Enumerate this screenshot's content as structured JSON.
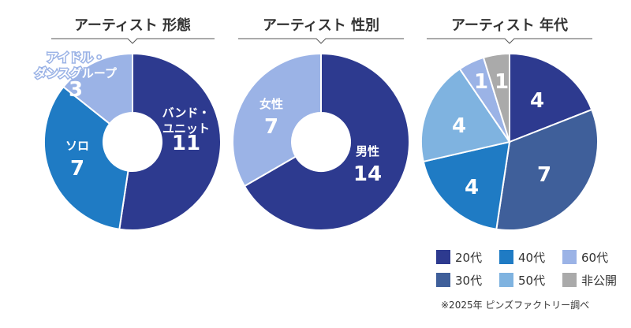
{
  "chart_data": [
    {
      "type": "pie",
      "title": "アーティスト 形態",
      "slices": [
        {
          "label": [
            "バンド・",
            "ユニット"
          ],
          "value": 11,
          "color": "#2d3a8f"
        },
        {
          "label": [
            "ソロ"
          ],
          "value": 7,
          "color": "#1f7bc4"
        },
        {
          "label": [
            "アイドル・",
            "ダンスグループ"
          ],
          "value": 3,
          "color": "#9bb3e6"
        }
      ]
    },
    {
      "type": "pie",
      "title": "アーティスト 性別",
      "slices": [
        {
          "label": [
            "男性"
          ],
          "value": 14,
          "color": "#2d3a8f"
        },
        {
          "label": [
            "女性"
          ],
          "value": 7,
          "color": "#9bb3e6"
        }
      ]
    },
    {
      "type": "pie",
      "title": "アーティスト 年代",
      "slices": [
        {
          "label": [
            "20代"
          ],
          "value": 4,
          "color": "#2d3a8f"
        },
        {
          "label": [
            "30代"
          ],
          "value": 7,
          "color": "#3f5f9a"
        },
        {
          "label": [
            "40代"
          ],
          "value": 4,
          "color": "#1f7bc4"
        },
        {
          "label": [
            "50代"
          ],
          "value": 4,
          "color": "#7fb3e0"
        },
        {
          "label": [
            "60代"
          ],
          "value": 1,
          "color": "#9bb3e6"
        },
        {
          "label": [
            "非公開"
          ],
          "value": 1,
          "color": "#aaaaaa"
        }
      ]
    }
  ],
  "legend": [
    {
      "label": "20代",
      "color": "#2d3a8f"
    },
    {
      "label": "40代",
      "color": "#1f7bc4"
    },
    {
      "label": "60代",
      "color": "#9bb3e6"
    },
    {
      "label": "30代",
      "color": "#3f5f9a"
    },
    {
      "label": "50代",
      "color": "#7fb3e0"
    },
    {
      "label": "非公開",
      "color": "#aaaaaa"
    }
  ],
  "source": "※2025年 ピンズファクトリー調べ"
}
